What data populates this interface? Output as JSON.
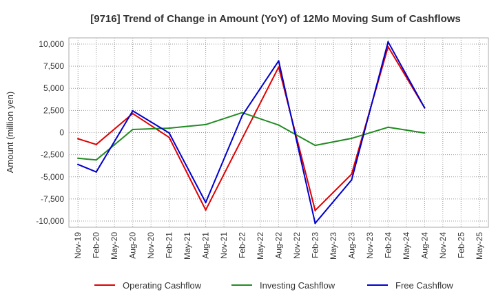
{
  "chart_data": {
    "type": "line",
    "title": "[9716]  Trend of Change in Amount (YoY) of 12Mo Moving Sum of Cashflows",
    "xlabel": "",
    "ylabel": "Amount (million yen)",
    "ylim": [
      -10700,
      10700
    ],
    "yticks": [
      10000,
      7500,
      5000,
      2500,
      0,
      -2500,
      -5000,
      -7500,
      -10000
    ],
    "ytick_labels": [
      "10,000",
      "7,500",
      "5,000",
      "2,500",
      "0",
      "-2,500",
      "-5,000",
      "-7,500",
      "-10,000"
    ],
    "categories": [
      "Nov-19",
      "Feb-20",
      "May-20",
      "Aug-20",
      "Nov-20",
      "Feb-21",
      "May-21",
      "Aug-21",
      "Nov-21",
      "Feb-22",
      "May-22",
      "Aug-22",
      "Nov-22",
      "Feb-23",
      "May-23",
      "Aug-23",
      "Nov-23",
      "Feb-24",
      "May-24",
      "Aug-24",
      "Nov-24",
      "Feb-25",
      "May-25"
    ],
    "grid": true,
    "legend_position": "bottom",
    "series": [
      {
        "name": "Operating Cashflow",
        "color": "#e00000",
        "values": [
          -700,
          -1350,
          null,
          2150,
          null,
          -550,
          null,
          -8750,
          null,
          null,
          null,
          7400,
          null,
          -8800,
          null,
          -4700,
          null,
          9700,
          null,
          2800,
          null,
          null,
          null
        ]
      },
      {
        "name": "Investing Cashflow",
        "color": "#228b22",
        "values": [
          -2900,
          -3100,
          null,
          350,
          null,
          500,
          null,
          900,
          null,
          2250,
          null,
          850,
          null,
          -1450,
          null,
          -650,
          null,
          600,
          null,
          -50,
          null,
          null,
          null
        ]
      },
      {
        "name": "Free Cashflow",
        "color": "#0000cc",
        "values": [
          -3600,
          -4450,
          null,
          2450,
          null,
          -50,
          null,
          -7900,
          null,
          1900,
          null,
          8100,
          null,
          -10250,
          null,
          -5350,
          null,
          10250,
          null,
          2800,
          null,
          null,
          null
        ]
      }
    ]
  }
}
